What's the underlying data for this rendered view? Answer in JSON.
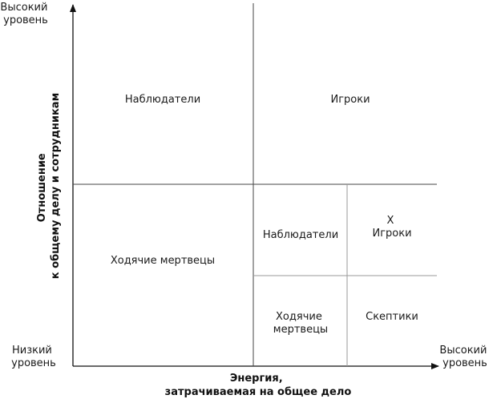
{
  "y_axis": {
    "top_label": [
      "Высокий",
      "уровень"
    ],
    "title": [
      "Отношение",
      "к общему делу и сотрудникам"
    ]
  },
  "x_axis": {
    "left_label": [
      "Низкий",
      "уровень"
    ],
    "right_label": [
      "Высокий",
      "уровень"
    ],
    "title": [
      "Энергия,",
      "затрачиваемая на общее дело"
    ]
  },
  "quadrants": {
    "top_left": "Наблюдатели",
    "top_right": "Игроки",
    "bottom_left": "Ходячие мертвецы"
  },
  "subquadrants": {
    "top_left": "Наблюдатели",
    "top_right": [
      "X",
      "Игроки"
    ],
    "bottom_left": [
      "Ходячие",
      "мертвецы"
    ],
    "bottom_right": "Скептики"
  },
  "colors": {
    "axis": "#111111",
    "grid_main": "#444444",
    "grid_sub": "#9a9a9a"
  }
}
